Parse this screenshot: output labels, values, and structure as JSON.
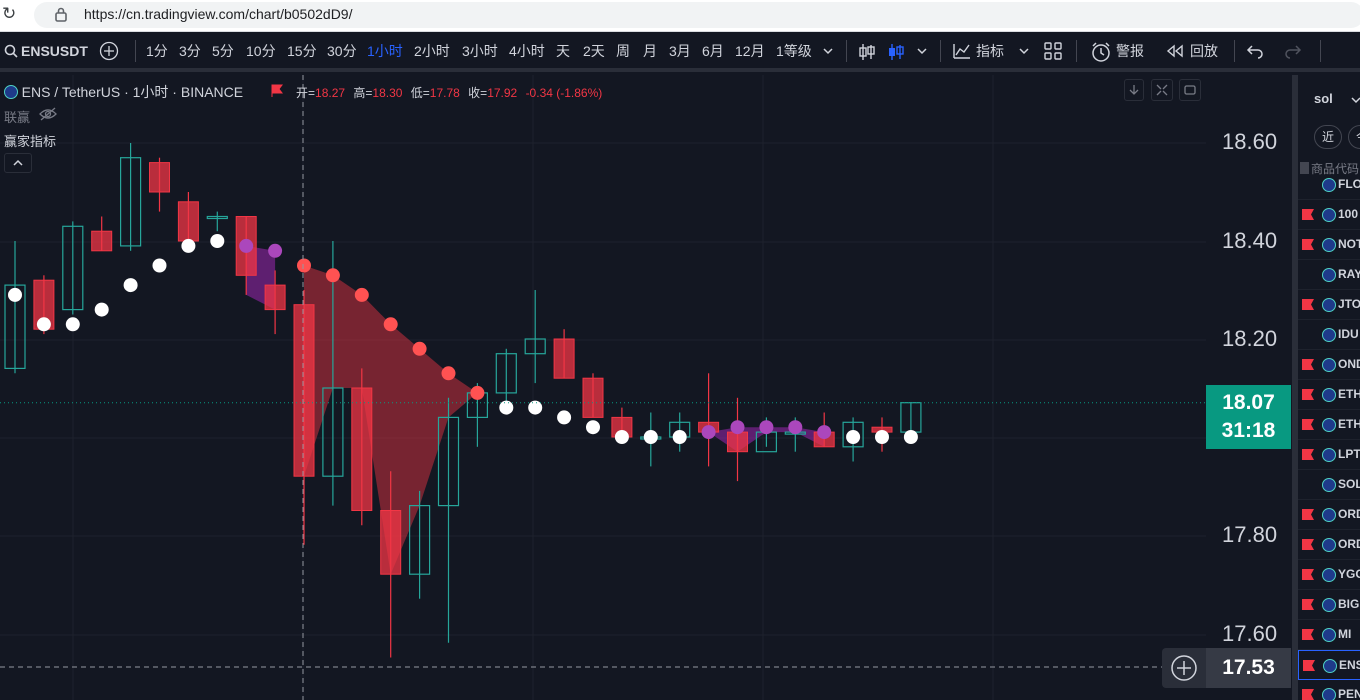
{
  "browser": {
    "url": "https://cn.tradingview.com/chart/b0502dD9/"
  },
  "toolbar": {
    "symbol": "ENSUSDT",
    "intervals": [
      "1分",
      "3分",
      "5分",
      "10分",
      "15分",
      "30分",
      "1小时",
      "2小时",
      "3小时",
      "4小时",
      "天",
      "2天",
      "周",
      "月",
      "3月",
      "6月",
      "12月",
      "1等级"
    ],
    "active_interval": "1小时",
    "indicators_label": "指标",
    "alerts_label": "警报",
    "replay_label": "回放"
  },
  "legend": {
    "title": "ENS / TetherUS · 1小时 · BINANCE",
    "open_label": "开=",
    "open": "18.27",
    "high_label": "高=",
    "high": "18.30",
    "low_label": "低=",
    "low": "17.78",
    "close_label": "收=",
    "close": "17.92",
    "change": "-0.34 (-1.86%)",
    "sub1": "联赢",
    "sub2": "赢家指标"
  },
  "price_axis": {
    "labels": [
      "18.60",
      "18.40",
      "18.20",
      "17.80",
      "17.60"
    ],
    "current_price": "18.07",
    "countdown": "31:18",
    "crosshair_price": "17.53"
  },
  "colors": {
    "up": "#26a69a",
    "down": "#f23645",
    "accent": "#2962ff",
    "price_tag": "#089981",
    "fill_red": "#f23645",
    "fill_purple": "#9c27b0"
  },
  "chart_data": {
    "type": "candlestick",
    "ylim": [
      17.53,
      18.68
    ],
    "bars": [
      {
        "o": 18.14,
        "h": 18.4,
        "l": 18.13,
        "c": 18.31
      },
      {
        "o": 18.32,
        "h": 18.33,
        "l": 18.21,
        "c": 18.22
      },
      {
        "o": 18.26,
        "h": 18.44,
        "l": 18.25,
        "c": 18.43
      },
      {
        "o": 18.42,
        "h": 18.45,
        "l": 18.38,
        "c": 18.38
      },
      {
        "o": 18.39,
        "h": 18.6,
        "l": 18.38,
        "c": 18.57
      },
      {
        "o": 18.56,
        "h": 18.57,
        "l": 18.46,
        "c": 18.5
      },
      {
        "o": 18.48,
        "h": 18.5,
        "l": 18.4,
        "c": 18.4
      },
      {
        "o": 18.45,
        "h": 18.46,
        "l": 18.42,
        "c": 18.45
      },
      {
        "o": 18.45,
        "h": 18.45,
        "l": 18.29,
        "c": 18.33
      },
      {
        "o": 18.31,
        "h": 18.34,
        "l": 18.21,
        "c": 18.26
      },
      {
        "o": 18.27,
        "h": 18.3,
        "l": 17.78,
        "c": 17.92
      },
      {
        "o": 17.92,
        "h": 18.4,
        "l": 17.86,
        "c": 18.1
      },
      {
        "o": 18.1,
        "h": 18.14,
        "l": 17.82,
        "c": 17.85
      },
      {
        "o": 17.85,
        "h": 17.93,
        "l": 17.55,
        "c": 17.72
      },
      {
        "o": 17.72,
        "h": 17.89,
        "l": 17.67,
        "c": 17.86
      },
      {
        "o": 17.86,
        "h": 18.08,
        "l": 17.58,
        "c": 18.04
      },
      {
        "o": 18.04,
        "h": 18.11,
        "l": 17.98,
        "c": 18.09
      },
      {
        "o": 18.09,
        "h": 18.18,
        "l": 18.05,
        "c": 18.17
      },
      {
        "o": 18.17,
        "h": 18.3,
        "l": 18.11,
        "c": 18.2
      },
      {
        "o": 18.2,
        "h": 18.22,
        "l": 18.12,
        "c": 18.12
      },
      {
        "o": 18.12,
        "h": 18.13,
        "l": 18.04,
        "c": 18.04
      },
      {
        "o": 18.04,
        "h": 18.06,
        "l": 17.99,
        "c": 18.0
      },
      {
        "o": 18.0,
        "h": 18.05,
        "l": 17.94,
        "c": 18.0
      },
      {
        "o": 18.0,
        "h": 18.05,
        "l": 17.97,
        "c": 18.03
      },
      {
        "o": 18.03,
        "h": 18.13,
        "l": 17.94,
        "c": 18.01
      },
      {
        "o": 18.01,
        "h": 18.08,
        "l": 17.91,
        "c": 17.97
      },
      {
        "o": 17.97,
        "h": 18.04,
        "l": 17.98,
        "c": 18.01
      },
      {
        "o": 18.01,
        "h": 18.04,
        "l": 17.97,
        "c": 18.01
      },
      {
        "o": 18.01,
        "h": 18.05,
        "l": 17.98,
        "c": 17.98
      },
      {
        "o": 17.98,
        "h": 18.04,
        "l": 17.95,
        "c": 18.03
      },
      {
        "o": 18.02,
        "h": 18.04,
        "l": 17.97,
        "c": 18.01
      },
      {
        "o": 18.01,
        "h": 18.07,
        "l": 17.99,
        "c": 18.07
      }
    ],
    "dots": [
      18.29,
      18.23,
      18.23,
      18.26,
      18.31,
      18.35,
      18.39,
      18.4,
      18.39,
      18.38,
      18.35,
      18.33,
      18.29,
      18.23,
      18.18,
      18.13,
      18.09,
      18.06,
      18.06,
      18.04,
      18.02,
      18.0,
      18.0,
      18.0,
      18.01,
      18.02,
      18.02,
      18.02,
      18.01,
      18.0,
      18.0,
      18.0
    ],
    "dot_colors": [
      "w",
      "w",
      "w",
      "w",
      "w",
      "w",
      "w",
      "w",
      "p",
      "p",
      "r",
      "r",
      "r",
      "r",
      "r",
      "r",
      "r",
      "w",
      "w",
      "w",
      "w",
      "w",
      "w",
      "w",
      "p",
      "p",
      "p",
      "p",
      "p",
      "w",
      "w",
      "w"
    ]
  },
  "watchlist": {
    "search": "sol",
    "btn1": "近",
    "btn2": "今",
    "header": "商品代码",
    "items": [
      {
        "symbol": "FLOKI",
        "flag": false
      },
      {
        "symbol": "100",
        "flag": true
      },
      {
        "symbol": "NOT",
        "flag": true
      },
      {
        "symbol": "RAY",
        "flag": false
      },
      {
        "symbol": "JTO",
        "flag": true
      },
      {
        "symbol": "IDU",
        "flag": false
      },
      {
        "symbol": "OND",
        "flag": true
      },
      {
        "symbol": "ETH",
        "flag": true
      },
      {
        "symbol": "ETH",
        "flag": true
      },
      {
        "symbol": "LPT",
        "flag": true
      },
      {
        "symbol": "SOL",
        "flag": false
      },
      {
        "symbol": "ORD",
        "flag": true
      },
      {
        "symbol": "ORD",
        "flag": true
      },
      {
        "symbol": "YGG",
        "flag": true
      },
      {
        "symbol": "BIG",
        "flag": true
      },
      {
        "symbol": "MI",
        "flag": true
      },
      {
        "symbol": "ENS",
        "flag": true
      },
      {
        "symbol": "PEN",
        "flag": true
      }
    ]
  }
}
